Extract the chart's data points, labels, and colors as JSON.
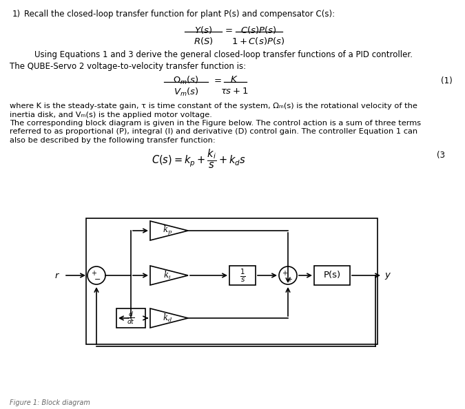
{
  "bg_color": "#ffffff",
  "fig_width": 6.75,
  "fig_height": 5.94,
  "dpi": 100,
  "line1": "1)   Recall the closed-loop transfer function for plant P(s) and compensator C(s):",
  "eq_using": "Using Equations 1 and 3 derive the general closed-loop transfer functions of a PID controller.",
  "qube_line": "The QUBE-Servo 2 voltage-to-velocity transfer function is:",
  "para_lines": [
    "where K is the steady-state gain, τ is time constant of the system, Ωₘ(s) is the rotational velocity of the",
    "inertia disk, and Vₘ(s) is the applied motor voltage.",
    "The corresponding block diagram is given in the Figure below. The control action is a sum of three terms",
    "referred to as proportional (P), integral (I) and derivative (D) control gain. The controller Equation 1 can",
    "also be described by the following transfer function:"
  ],
  "fig_caption": "Figure 1: Block diagram"
}
